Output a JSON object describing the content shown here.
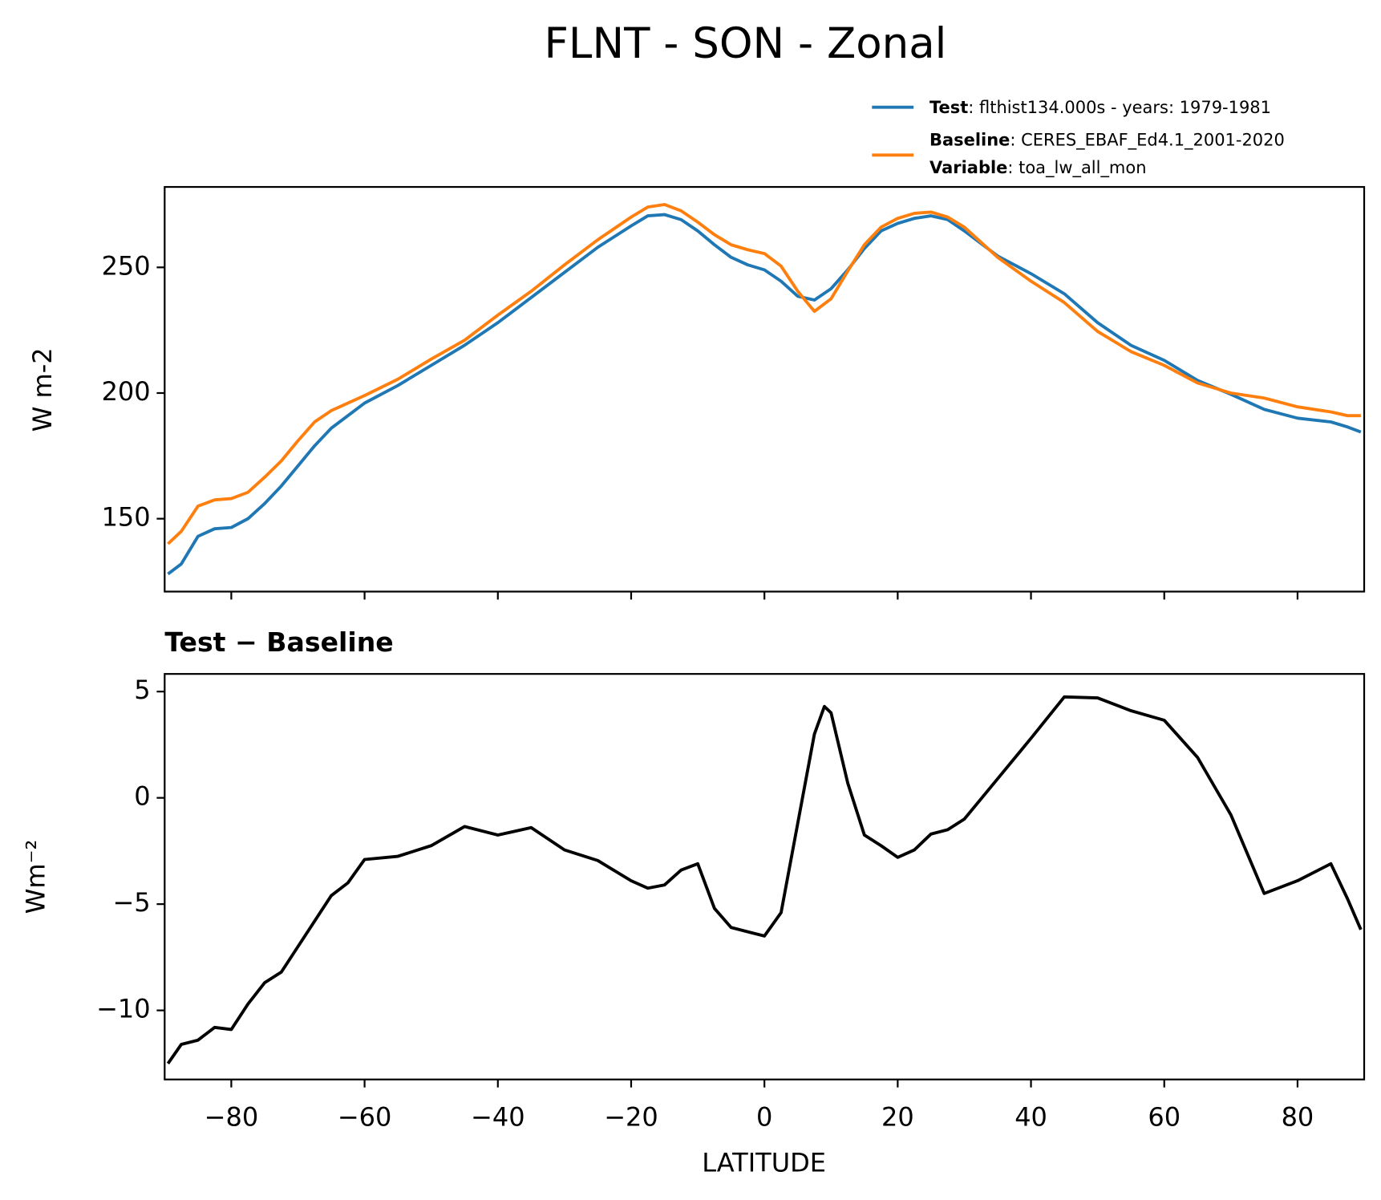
{
  "chart_data": [
    {
      "type": "line",
      "title": "FLNT - SON - Zonal",
      "ylabel": "W m-2",
      "x": [
        -89.5,
        -87.5,
        -85,
        -82.5,
        -80,
        -77.5,
        -75,
        -72.5,
        -70,
        -67.5,
        -65,
        -62.5,
        -60,
        -55,
        -50,
        -45,
        -40,
        -35,
        -30,
        -25,
        -20,
        -17.5,
        -15,
        -12.5,
        -10,
        -7.5,
        -5,
        -2.5,
        0,
        2.5,
        5,
        7.5,
        10,
        12.5,
        15,
        17.5,
        20,
        22.5,
        25,
        27.5,
        30,
        35,
        40,
        45,
        50,
        55,
        60,
        65,
        70,
        75,
        80,
        85,
        87.5,
        89.5
      ],
      "series": [
        {
          "name": "Test",
          "detail": ": flthist134.000s - years: 1979-1981",
          "color": "#1f77b4",
          "values": [
            128,
            132,
            143,
            146,
            146.5,
            150,
            156,
            163,
            171,
            179,
            186,
            191,
            196,
            203,
            211,
            219,
            228,
            238,
            248,
            258,
            266.5,
            270.5,
            271,
            269,
            264.5,
            259,
            254,
            251,
            249,
            244.5,
            238.5,
            237,
            241.5,
            249,
            257.5,
            264.5,
            267.5,
            269.5,
            270.5,
            269,
            264.5,
            254.5,
            247.5,
            239.5,
            228,
            219,
            213,
            205,
            199.5,
            193.5,
            190,
            188.5,
            186.5,
            184.5
          ]
        },
        {
          "name": "Baseline",
          "detail": ": CERES_EBAF_Ed4.1_2001-2020",
          "color": "#ff7f0e",
          "values": [
            140,
            145,
            155,
            157.5,
            158,
            160.5,
            166.5,
            173,
            181,
            188.5,
            193,
            196,
            199,
            205.5,
            213.5,
            221,
            231,
            240.5,
            251,
            261,
            270,
            274,
            275,
            272.5,
            268,
            263,
            259,
            257,
            255.5,
            250.5,
            240.5,
            232.5,
            237.5,
            248.5,
            259,
            266,
            269.5,
            271.5,
            272,
            270,
            266,
            254,
            244.5,
            236,
            224.5,
            216.5,
            211,
            204,
            200,
            198,
            194.5,
            192.5,
            191,
            191
          ]
        }
      ],
      "legend_note": {
        "name": "Variable",
        "detail": ": toa_lw_all_mon"
      },
      "xlim": [
        -90,
        90
      ],
      "xticks": [
        -80,
        -60,
        -40,
        -20,
        0,
        20,
        40,
        60,
        80
      ],
      "ylim": [
        121,
        282
      ],
      "yticks": [
        150,
        200,
        250
      ]
    },
    {
      "type": "line",
      "title": "Test − Baseline",
      "xlabel": "LATITUDE",
      "ylabel": "Wm⁻²",
      "color": "#000000",
      "x": [
        -89.5,
        -87.5,
        -85,
        -82.5,
        -80,
        -77.5,
        -75,
        -72.5,
        -70,
        -67.5,
        -65,
        -62.5,
        -60,
        -55,
        -50,
        -45,
        -40,
        -35,
        -30,
        -25,
        -20,
        -17.5,
        -15,
        -12.5,
        -10,
        -7.5,
        -5,
        -2.5,
        0,
        2.5,
        5,
        7.5,
        9,
        10,
        12.5,
        15,
        17.5,
        20,
        22.5,
        25,
        27.5,
        30,
        35,
        40,
        45,
        50,
        55,
        60,
        65,
        70,
        75,
        80,
        85,
        87.5,
        89.5
      ],
      "values": [
        -12.5,
        -11.6,
        -11.4,
        -10.8,
        -10.9,
        -9.7,
        -8.7,
        -8.2,
        -7,
        -5.8,
        -4.6,
        -4,
        -2.9,
        -2.75,
        -2.25,
        -1.35,
        -1.75,
        -1.4,
        -2.45,
        -2.95,
        -3.9,
        -4.25,
        -4.1,
        -3.4,
        -3.1,
        -5.2,
        -6.1,
        -6.3,
        -6.5,
        -5.4,
        -1.2,
        3,
        4.3,
        4,
        0.7,
        -1.75,
        -2.25,
        -2.8,
        -2.45,
        -1.7,
        -1.5,
        -1,
        0.9,
        2.8,
        4.75,
        4.7,
        4.1,
        3.65,
        1.9,
        -0.8,
        -4.5,
        -3.9,
        -3.1,
        -4.75,
        -6.2
      ],
      "xlim": [
        -90,
        90
      ],
      "xticks": [
        {
          "value": -80,
          "label": "−80"
        },
        {
          "value": -60,
          "label": "−60"
        },
        {
          "value": -40,
          "label": "−40"
        },
        {
          "value": -20,
          "label": "−20"
        },
        0,
        20,
        40,
        60,
        80
      ],
      "ylim": [
        -13.25,
        5.83
      ],
      "yticks": [
        {
          "value": -10,
          "label": "−10"
        },
        {
          "value": -5,
          "label": "−5"
        },
        0,
        5
      ]
    }
  ]
}
